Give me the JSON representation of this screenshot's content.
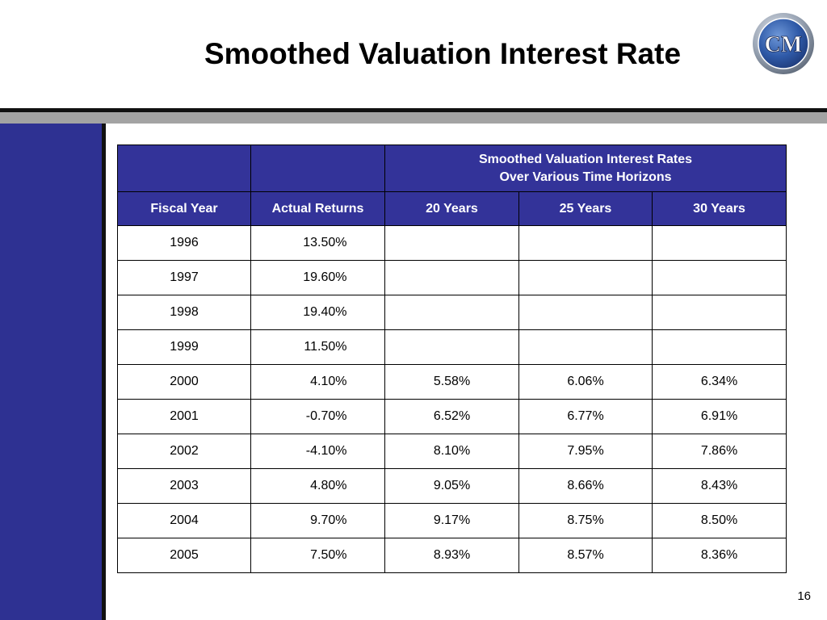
{
  "title": "Smoothed Valuation Interest Rate",
  "logo": {
    "text": "CM",
    "icon": "cm-logo-badge",
    "ring_color": "#8a96a8",
    "face_color": "#2f5aa8"
  },
  "colors": {
    "header_fill": "#333399",
    "left_panel": "#2e3192",
    "band_gray": "#a3a3a3"
  },
  "table": {
    "group_header": {
      "line1": "Smoothed Valuation Interest Rates",
      "line2": "Over Various Time Horizons"
    },
    "columns": [
      "Fiscal Year",
      "Actual Returns",
      "20 Years",
      "25 Years",
      "30 Years"
    ],
    "rows": [
      [
        "1996",
        "13.50%",
        "",
        "",
        ""
      ],
      [
        "1997",
        "19.60%",
        "",
        "",
        ""
      ],
      [
        "1998",
        "19.40%",
        "",
        "",
        ""
      ],
      [
        "1999",
        "11.50%",
        "",
        "",
        ""
      ],
      [
        "2000",
        "4.10%",
        "5.58%",
        "6.06%",
        "6.34%"
      ],
      [
        "2001",
        "-0.70%",
        "6.52%",
        "6.77%",
        "6.91%"
      ],
      [
        "2002",
        "-4.10%",
        "8.10%",
        "7.95%",
        "7.86%"
      ],
      [
        "2003",
        "4.80%",
        "9.05%",
        "8.66%",
        "8.43%"
      ],
      [
        "2004",
        "9.70%",
        "9.17%",
        "8.75%",
        "8.50%"
      ],
      [
        "2005",
        "7.50%",
        "8.93%",
        "8.57%",
        "8.36%"
      ]
    ]
  },
  "page_number": "16"
}
